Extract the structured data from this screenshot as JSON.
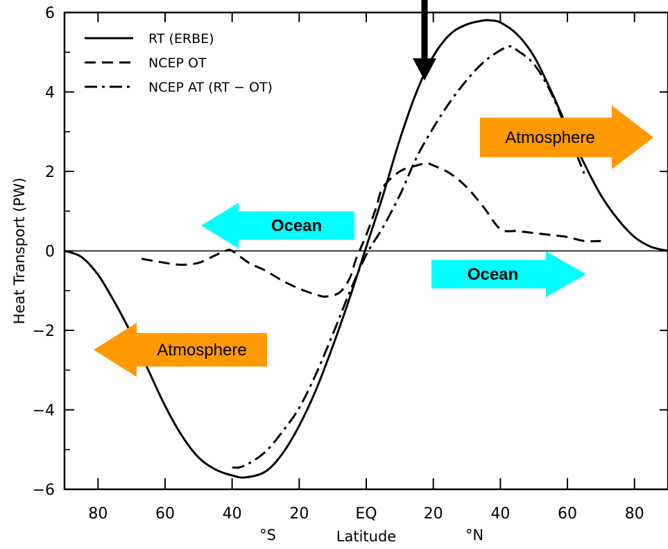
{
  "chart_data": {
    "type": "line",
    "xlabel": "Latitude",
    "ylabel": "Heat Transport (PW)",
    "xlim": [
      -90,
      90
    ],
    "ylim": [
      -6,
      6
    ],
    "x_ticks": [
      {
        "value": -80,
        "label": "80"
      },
      {
        "value": -60,
        "label": "60"
      },
      {
        "value": -40,
        "label": "40"
      },
      {
        "value": -20,
        "label": "20"
      },
      {
        "value": 0,
        "label": "EQ"
      },
      {
        "value": 20,
        "label": "20"
      },
      {
        "value": 40,
        "label": "40"
      },
      {
        "value": 60,
        "label": "60"
      },
      {
        "value": 80,
        "label": "80"
      }
    ],
    "y_ticks": [
      {
        "value": 6,
        "label": "6"
      },
      {
        "value": 4,
        "label": "4"
      },
      {
        "value": 2,
        "label": "2"
      },
      {
        "value": 0,
        "label": "0"
      },
      {
        "value": -2,
        "label": "−2"
      },
      {
        "value": -4,
        "label": "−4"
      },
      {
        "value": -6,
        "label": "−6"
      }
    ],
    "hemisphere_labels": {
      "south": "°S",
      "north": "°N"
    },
    "grid": false,
    "legend_position": "top-left",
    "series": [
      {
        "name": "RT (ERBE)",
        "style": "solid",
        "x": [
          -90,
          -85,
          -80,
          -75,
          -70,
          -65,
          -60,
          -55,
          -50,
          -45,
          -40,
          -36,
          -30,
          -25,
          -20,
          -15,
          -10,
          -5,
          0,
          5,
          10,
          15,
          20,
          25,
          30,
          35,
          37,
          40,
          45,
          50,
          55,
          60,
          65,
          70,
          75,
          80,
          85,
          90
        ],
        "y": [
          0,
          -0.15,
          -0.6,
          -1.3,
          -2.1,
          -3.0,
          -3.9,
          -4.65,
          -5.2,
          -5.5,
          -5.65,
          -5.7,
          -5.55,
          -5.1,
          -4.4,
          -3.5,
          -2.4,
          -1.2,
          0.1,
          1.4,
          2.8,
          4.0,
          4.9,
          5.45,
          5.7,
          5.8,
          5.8,
          5.75,
          5.45,
          4.9,
          4.05,
          3.1,
          2.2,
          1.4,
          0.8,
          0.35,
          0.1,
          0
        ]
      },
      {
        "name": "NCEP OT",
        "style": "dashed",
        "x": [
          -67,
          -60,
          -55,
          -50,
          -46,
          -42,
          -40,
          -35,
          -30,
          -25,
          -20,
          -15,
          -12,
          -8,
          -5,
          -3,
          0,
          3,
          5,
          10,
          15,
          18,
          20,
          25,
          30,
          35,
          40,
          45,
          50,
          55,
          60,
          65,
          70
        ],
        "y": [
          -0.2,
          -0.3,
          -0.35,
          -0.3,
          -0.15,
          0.0,
          0.0,
          -0.3,
          -0.5,
          -0.75,
          -0.95,
          -1.1,
          -1.15,
          -1.05,
          -0.7,
          -0.2,
          0.4,
          1.1,
          1.6,
          2.0,
          2.15,
          2.2,
          2.15,
          1.95,
          1.6,
          1.1,
          0.55,
          0.5,
          0.45,
          0.4,
          0.35,
          0.25,
          0.25
        ]
      },
      {
        "name": "NCEP AT (RT − OT)",
        "style": "dash-dot",
        "x": [
          -40,
          -38,
          -35,
          -30,
          -25,
          -20,
          -15,
          -10,
          -5,
          0,
          5,
          10,
          15,
          20,
          25,
          30,
          35,
          40,
          43,
          45,
          50,
          55,
          60,
          65
        ],
        "y": [
          -5.45,
          -5.45,
          -5.35,
          -5.05,
          -4.55,
          -3.95,
          -3.1,
          -2.1,
          -1.05,
          -0.1,
          0.6,
          1.4,
          2.35,
          3.1,
          3.75,
          4.3,
          4.75,
          5.05,
          5.15,
          5.05,
          4.7,
          4.0,
          3.0,
          1.95
        ]
      }
    ],
    "annotations": [
      {
        "text": "Ocean",
        "color": "#00ffff",
        "direction": "left",
        "bold": true
      },
      {
        "text": "Ocean",
        "color": "#00ffff",
        "direction": "right",
        "bold": true
      },
      {
        "text": "Atmosphere",
        "color": "#ff9900",
        "direction": "left",
        "bold": false
      },
      {
        "text": "Atmosphere",
        "color": "#ff9900",
        "direction": "right",
        "bold": false
      }
    ]
  }
}
